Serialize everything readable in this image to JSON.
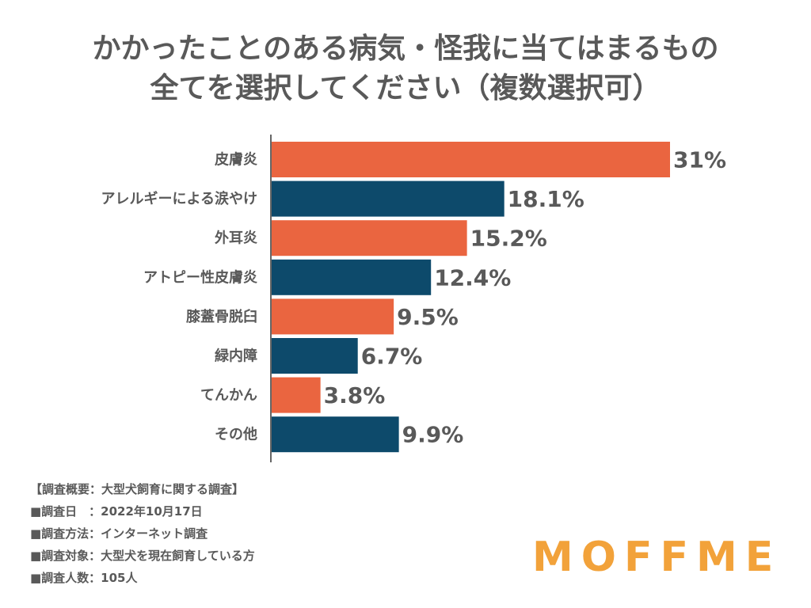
{
  "title": {
    "line1": "かかったことのある病気・怪我に当てはまるもの",
    "line2": "全てを選択してください（複数選択可）"
  },
  "chart_data": {
    "type": "bar",
    "orientation": "horizontal",
    "categories": [
      "皮膚炎",
      "アレルギーによる涙やけ",
      "外耳炎",
      "アトピー性皮膚炎",
      "膝蓋骨脱臼",
      "緑内障",
      "てんかん",
      "その他"
    ],
    "values": [
      31,
      18.1,
      15.2,
      12.4,
      9.5,
      6.7,
      3.8,
      9.9
    ],
    "value_labels": [
      "31%",
      "18.1%",
      "15.2%",
      "12.4%",
      "9.5%",
      "6.7%",
      "3.8%",
      "9.9%"
    ],
    "unit": "%",
    "xlim": [
      0,
      31
    ],
    "bar_colors": [
      "#ea6540",
      "#0d4a6b",
      "#ea6540",
      "#0d4a6b",
      "#ea6540",
      "#0d4a6b",
      "#ea6540",
      "#0d4a6b"
    ]
  },
  "survey_notes": [
    "【調査概要：大型犬飼育に関する調査】",
    "■調査日　：2022年10月17日",
    "■調査方法：インターネット調査",
    "■調査対象：大型犬を現在飼育している方",
    "■調査人数：105人"
  ],
  "logo": {
    "text": "MOFFME",
    "color": "#f2a23a"
  }
}
